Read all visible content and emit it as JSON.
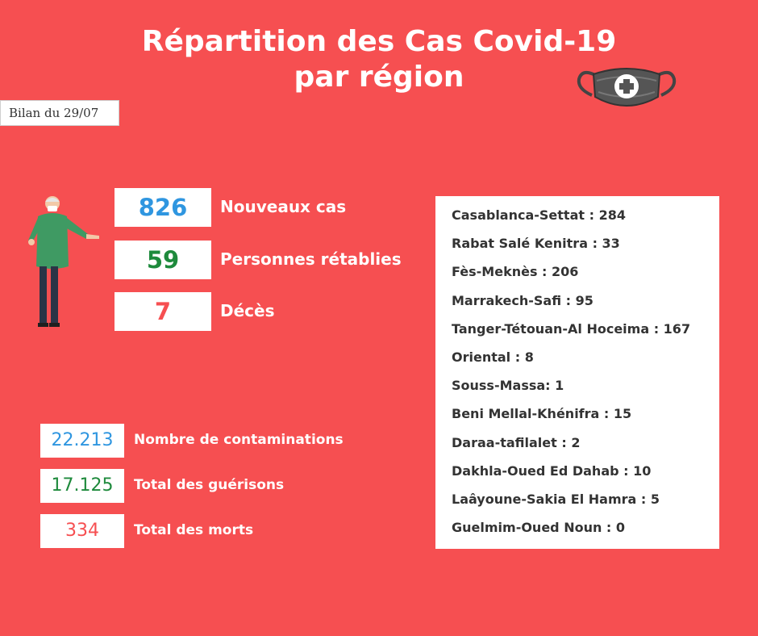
{
  "title": {
    "line1": "Répartition des Cas Covid-19",
    "line2": "par région"
  },
  "bilan": "Bilan du 29/07",
  "daily": [
    {
      "value": "826",
      "label": "Nouveaux cas",
      "color": "#2f96e0"
    },
    {
      "value": "59",
      "label": "Personnes rétablies",
      "color": "#1e8a3c"
    },
    {
      "value": "7",
      "label": "Décès",
      "color": "#f64f51"
    }
  ],
  "totals": [
    {
      "value": "22.213",
      "label": "Nombre de contaminations",
      "color": "#2f96e0"
    },
    {
      "value": "17.125",
      "label": "Total des guérisons",
      "color": "#1e8a3c"
    },
    {
      "value": "334",
      "label": "Total des morts",
      "color": "#f64f51"
    }
  ],
  "regions": [
    "Casablanca-Settat : 284",
    "Rabat Salé Kenitra : 33",
    "Fès-Meknès : 206",
    "Marrakech-Safi : 95",
    "Tanger-Tétouan-Al Hoceima : 167",
    "Oriental : 8",
    "Souss-Massa: 1",
    "Beni Mellal-Khénifra : 15",
    "Daraa-tafilalet : 2",
    "Dakhla-Oued Ed Dahab : 10",
    "Laâyoune-Sakia El Hamra : 5",
    "Guelmim-Oued Noun : 0"
  ],
  "icons": {
    "mask": "medical-mask-icon",
    "doctor": "doctor-illustration"
  }
}
